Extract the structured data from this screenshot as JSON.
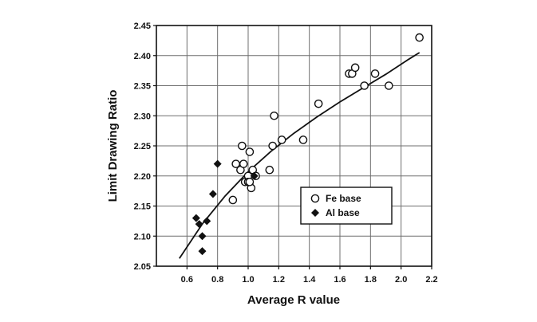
{
  "chart_data": {
    "type": "scatter",
    "title": "",
    "xlabel": "Average R value",
    "ylabel": "Limit Drawing Ratio",
    "xlim": [
      0.4,
      2.2
    ],
    "ylim": [
      2.05,
      2.45
    ],
    "xticks": [
      "0.6",
      "0.8",
      "1.0",
      "1.2",
      "1.4",
      "1.6",
      "1.8",
      "2.0",
      "2.2"
    ],
    "yticks": [
      "2.05",
      "2.10",
      "2.15",
      "2.20",
      "2.25",
      "2.30",
      "2.35",
      "2.40",
      "2.45"
    ],
    "grid": true,
    "legend_position": "lower-right",
    "series": [
      {
        "name": "Fe base",
        "marker": "open-circle",
        "x": [
          0.9,
          0.92,
          0.95,
          0.96,
          0.97,
          0.98,
          1.0,
          1.01,
          1.02,
          1.03,
          1.05,
          1.0,
          1.01,
          1.14,
          1.16,
          1.17,
          1.22,
          1.36,
          1.46,
          1.66,
          1.68,
          1.7,
          1.76,
          1.83,
          1.92,
          2.12
        ],
        "y": [
          2.16,
          2.22,
          2.21,
          2.25,
          2.22,
          2.19,
          2.2,
          2.24,
          2.18,
          2.21,
          2.2,
          2.19,
          2.19,
          2.21,
          2.25,
          2.3,
          2.26,
          2.26,
          2.32,
          2.37,
          2.37,
          2.38,
          2.35,
          2.37,
          2.35,
          2.43
        ]
      },
      {
        "name": "Al base",
        "marker": "filled-diamond",
        "x": [
          0.66,
          0.68,
          0.7,
          0.7,
          0.73,
          0.77,
          0.8,
          1.04
        ],
        "y": [
          2.13,
          2.12,
          2.1,
          2.075,
          2.125,
          2.17,
          2.22,
          2.2
        ]
      },
      {
        "name": "",
        "type": "line",
        "x": [
          0.55,
          0.7,
          0.85,
          1.0,
          1.15,
          1.3,
          1.45,
          1.6,
          1.75,
          1.9,
          2.05,
          2.12
        ],
        "y": [
          2.063,
          2.12,
          2.167,
          2.207,
          2.241,
          2.271,
          2.298,
          2.323,
          2.346,
          2.369,
          2.394,
          2.405
        ]
      }
    ]
  }
}
